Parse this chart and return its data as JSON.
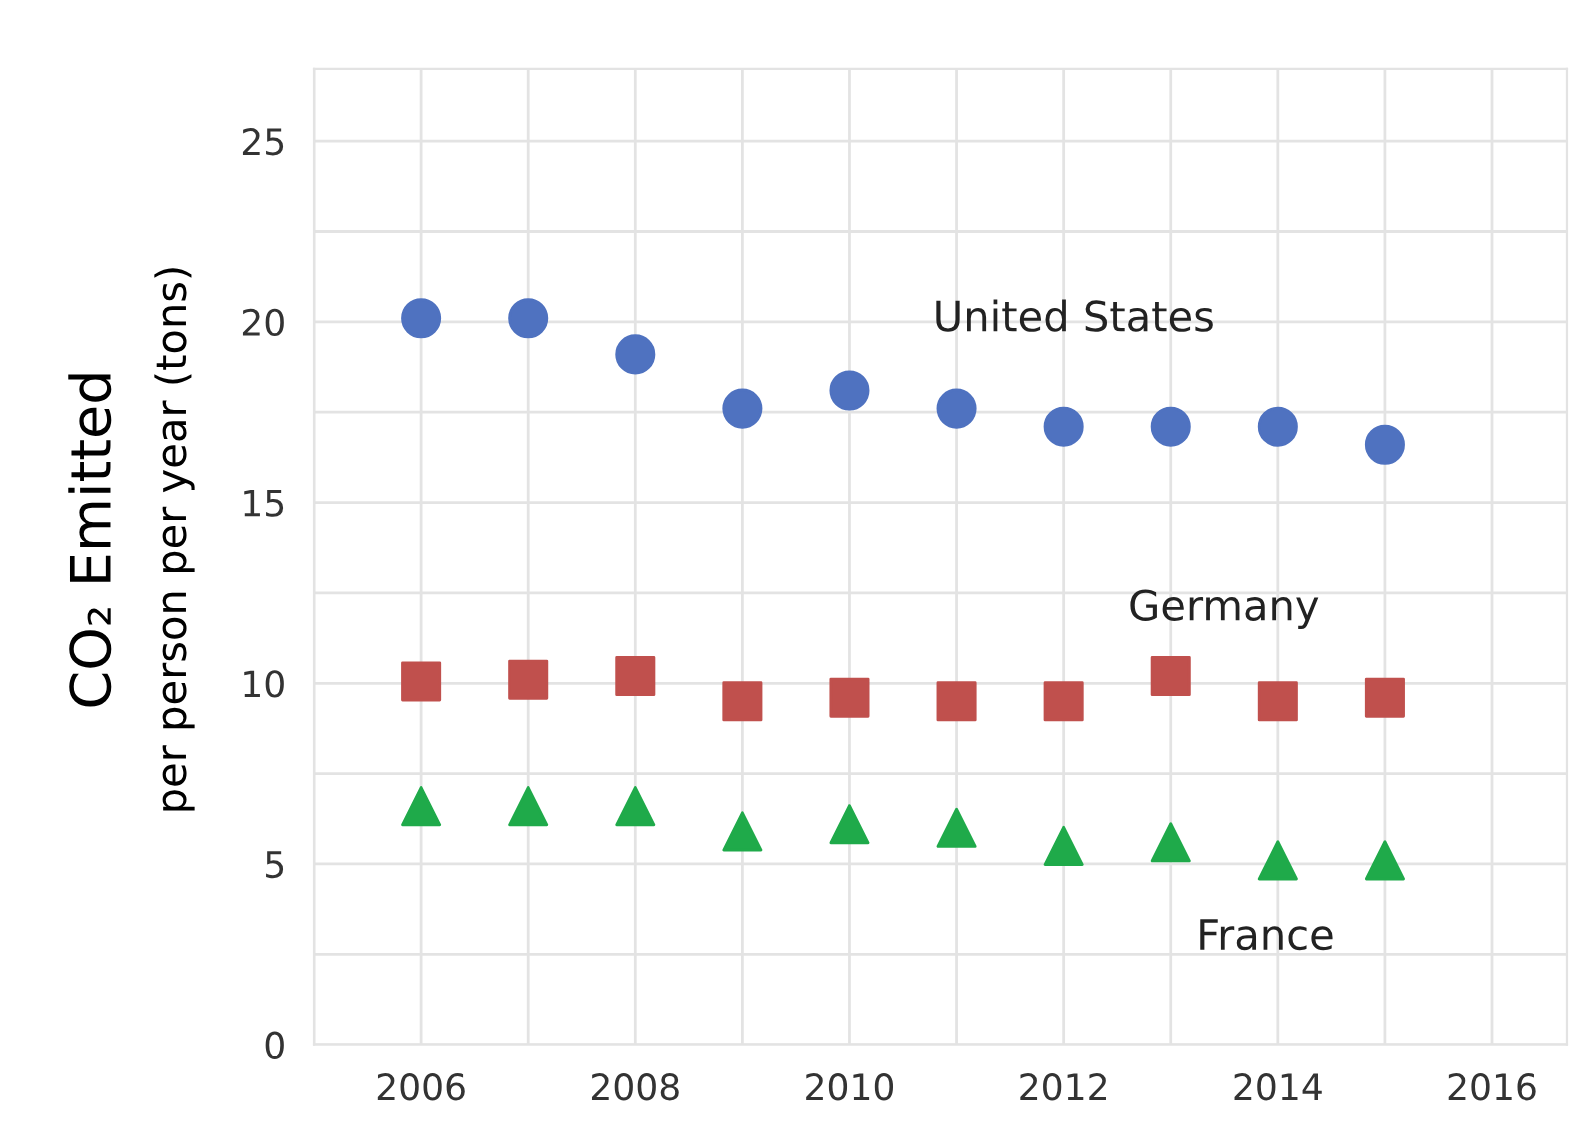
{
  "chart_data": {
    "type": "scatter",
    "ylabel": "CO₂ Emitted\nper person per year (tons)",
    "x": [
      2006,
      2007,
      2008,
      2009,
      2010,
      2011,
      2012,
      2013,
      2014,
      2015
    ],
    "series": [
      {
        "name": "United States",
        "color": "#4f72c0",
        "marker": "circle",
        "values": [
          20.1,
          20.1,
          19.1,
          17.6,
          18.1,
          17.6,
          17.1,
          17.1,
          17.1,
          16.6
        ]
      },
      {
        "name": "Germany",
        "color": "#c0504d",
        "marker": "square",
        "values": [
          10.05,
          10.1,
          10.2,
          9.5,
          9.6,
          9.5,
          9.5,
          10.2,
          9.5,
          9.6
        ]
      },
      {
        "name": "France",
        "color": "#1faa4a",
        "marker": "triangle",
        "values": [
          6.6,
          6.6,
          6.6,
          5.9,
          6.1,
          6.0,
          5.5,
          5.6,
          5.1,
          5.1
        ]
      }
    ],
    "xlim": [
      2005,
      2016.7
    ],
    "xticks": [
      {
        "value": 2005,
        "label": null
      },
      2006,
      {
        "value": 2007,
        "label": null
      },
      2008,
      {
        "value": 2009,
        "label": null
      },
      2010,
      {
        "value": 2011,
        "label": null
      },
      2012,
      {
        "value": 2013,
        "label": null
      },
      2014,
      {
        "value": 2015,
        "label": null
      },
      2016
    ],
    "ylim": [
      0,
      27
    ],
    "yticks": [
      0,
      {
        "value": 2.5,
        "label": null
      },
      5,
      {
        "value": 7.5,
        "label": null
      },
      10,
      {
        "value": 12.5,
        "label": null
      },
      15,
      {
        "value": 17.5,
        "label": null
      },
      20,
      {
        "value": 22.5,
        "label": null
      },
      25
    ],
    "grid": true,
    "legend": false
  }
}
